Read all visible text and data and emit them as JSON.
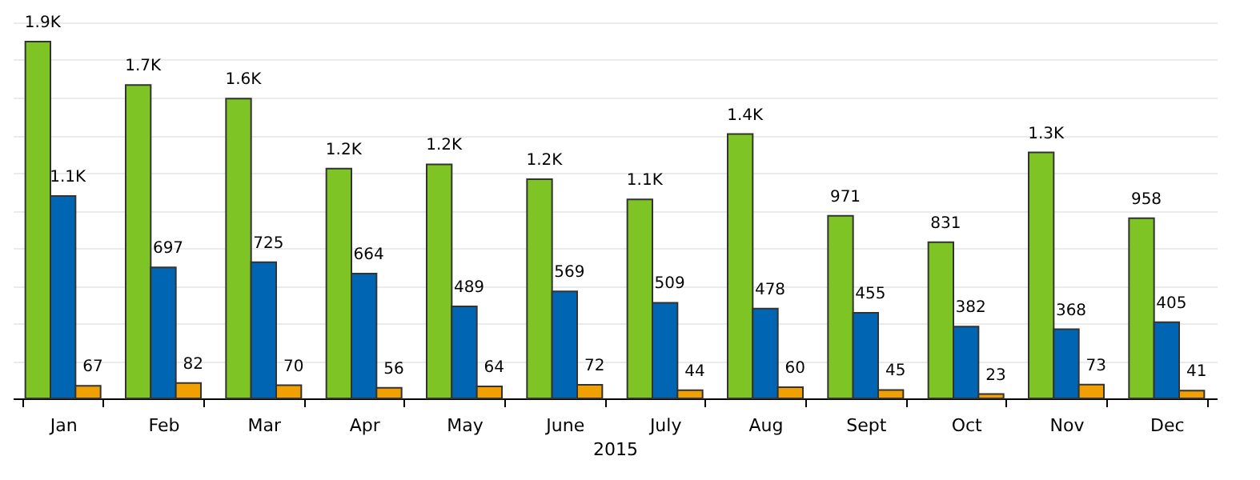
{
  "chart_data": {
    "type": "bar",
    "xlabel": "2015",
    "categories": [
      "Jan",
      "Feb",
      "Mar",
      "Apr",
      "May",
      "June",
      "July",
      "Aug",
      "Sept",
      "Oct",
      "Nov",
      "Dec"
    ],
    "series": [
      {
        "color": "#7dc424",
        "values": [
          1898,
          1667,
          1595,
          1222,
          1245,
          1166,
          1059,
          1406,
          971,
          831,
          1308,
          958
        ],
        "value_labels": [
          "1.9K",
          "1.7K",
          "1.6K",
          "1.2K",
          "1.2K",
          "1.2K",
          "1.1K",
          "1.4K",
          "971",
          "831",
          "1.3K",
          "958"
        ]
      },
      {
        "color": "#0066b3",
        "values": [
          1077,
          697,
          725,
          664,
          489,
          569,
          509,
          478,
          455,
          382,
          368,
          405
        ],
        "value_labels": [
          "1.1K",
          "697",
          "725",
          "664",
          "489",
          "569",
          "509",
          "478",
          "455",
          "382",
          "368",
          "405"
        ]
      },
      {
        "color": "#f0a000",
        "values": [
          67,
          82,
          70,
          56,
          64,
          72,
          44,
          60,
          45,
          23,
          73,
          41
        ],
        "value_labels": [
          "67",
          "82",
          "70",
          "56",
          "64",
          "72",
          "44",
          "60",
          "45",
          "23",
          "73",
          "41"
        ]
      }
    ],
    "grid": "y",
    "tick_labels": "x"
  }
}
